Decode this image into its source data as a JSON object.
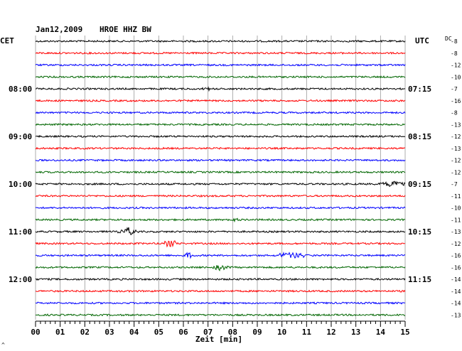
{
  "header": {
    "date": "Jan12,2009",
    "station": "HROE HHZ BW",
    "left_zone": "CET",
    "right_zone": "UTC",
    "dc_label": "DC"
  },
  "colors": {
    "trace_cycle": [
      "#000000",
      "#ff0000",
      "#0000ff",
      "#006600"
    ],
    "grid": "#999999"
  },
  "left_times": [
    "08:00",
    "09:00",
    "10:00",
    "11:00",
    "12:00"
  ],
  "right_times": [
    "07:15",
    "08:15",
    "09:15",
    "10:15",
    "11:15"
  ],
  "dc_offsets": [
    "-8",
    "-8",
    "-12",
    "-10",
    "-7",
    "-16",
    "-8",
    "-13",
    "-12",
    "-13",
    "-12",
    "-12",
    "-7",
    "-11",
    "-10",
    "-11",
    "-13",
    "-12",
    "-16",
    "-16",
    "-14",
    "-14",
    "-14",
    "-13"
  ],
  "x_axis": {
    "title": "Zeit [min]",
    "ticks": [
      "00",
      "01",
      "02",
      "03",
      "04",
      "05",
      "06",
      "07",
      "08",
      "09",
      "10",
      "11",
      "12",
      "13",
      "14",
      "15"
    ]
  },
  "footer_mark": "^"
}
